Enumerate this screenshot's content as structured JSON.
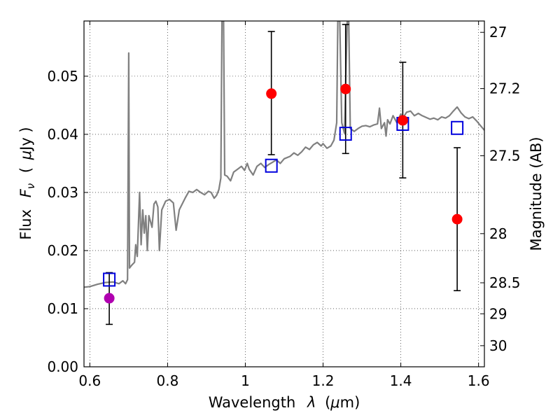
{
  "chart_data": {
    "type": "line",
    "xlabel": "Wavelength",
    "xlabel_symbol": "λ",
    "xlabel_unit_open": "(",
    "xlabel_unit_mu": "μ",
    "xlabel_unit_rest": "m)",
    "ylabel": "Flux",
    "ylabel_symbol": "F",
    "ylabel_symbol_sub": "ν",
    "ylabel_unit_open": "(",
    "ylabel_unit_mu": "μ",
    "ylabel_unit_rest": "Jy )",
    "y2label": "Magnitude (AB)",
    "xlim": [
      0.585,
      1.615
    ],
    "ylim": [
      0.0,
      0.0595
    ],
    "grid": true,
    "x_ticks": [
      {
        "value": 0.6,
        "label": "0.6"
      },
      {
        "value": 0.8,
        "label": "0.8"
      },
      {
        "value": 1.0,
        "label": "1"
      },
      {
        "value": 1.2,
        "label": "1.2"
      },
      {
        "value": 1.4,
        "label": "1.4"
      },
      {
        "value": 1.6,
        "label": "1.6"
      }
    ],
    "y_ticks": [
      {
        "value": 0.0,
        "label": "0.00"
      },
      {
        "value": 0.01,
        "label": "0.01"
      },
      {
        "value": 0.02,
        "label": "0.02"
      },
      {
        "value": 0.03,
        "label": "0.03"
      },
      {
        "value": 0.04,
        "label": "0.04"
      },
      {
        "value": 0.05,
        "label": "0.05"
      }
    ],
    "y2_ticks": [
      {
        "mag": 27.0,
        "label": "27"
      },
      {
        "mag": 27.2,
        "label": "27.2"
      },
      {
        "mag": 27.5,
        "label": "27.5"
      },
      {
        "mag": 28.0,
        "label": "28"
      },
      {
        "mag": 28.5,
        "label": "28.5"
      },
      {
        "mag": 29.0,
        "label": "29"
      },
      {
        "mag": 30.0,
        "label": "30"
      }
    ],
    "model_color": "#808080",
    "model_spectrum": [
      [
        0.585,
        0.0137
      ],
      [
        0.6,
        0.0138
      ],
      [
        0.62,
        0.0142
      ],
      [
        0.64,
        0.0145
      ],
      [
        0.66,
        0.0146
      ],
      [
        0.675,
        0.0143
      ],
      [
        0.685,
        0.0148
      ],
      [
        0.692,
        0.0143
      ],
      [
        0.697,
        0.015
      ],
      [
        0.7,
        0.054
      ],
      [
        0.702,
        0.017
      ],
      [
        0.708,
        0.0175
      ],
      [
        0.715,
        0.018
      ],
      [
        0.718,
        0.021
      ],
      [
        0.722,
        0.019
      ],
      [
        0.728,
        0.03
      ],
      [
        0.732,
        0.021
      ],
      [
        0.736,
        0.027
      ],
      [
        0.74,
        0.023
      ],
      [
        0.744,
        0.026
      ],
      [
        0.748,
        0.02
      ],
      [
        0.752,
        0.026
      ],
      [
        0.76,
        0.024
      ],
      [
        0.765,
        0.028
      ],
      [
        0.77,
        0.0285
      ],
      [
        0.775,
        0.0275
      ],
      [
        0.779,
        0.02
      ],
      [
        0.785,
        0.027
      ],
      [
        0.795,
        0.0285
      ],
      [
        0.805,
        0.0288
      ],
      [
        0.815,
        0.0282
      ],
      [
        0.822,
        0.0235
      ],
      [
        0.83,
        0.027
      ],
      [
        0.845,
        0.029
      ],
      [
        0.855,
        0.0302
      ],
      [
        0.865,
        0.03
      ],
      [
        0.875,
        0.0305
      ],
      [
        0.885,
        0.03
      ],
      [
        0.895,
        0.0296
      ],
      [
        0.905,
        0.0302
      ],
      [
        0.912,
        0.03
      ],
      [
        0.92,
        0.029
      ],
      [
        0.926,
        0.0295
      ],
      [
        0.932,
        0.0305
      ],
      [
        0.937,
        0.0325
      ],
      [
        0.94,
        0.0595
      ],
      [
        0.944,
        0.0595
      ],
      [
        0.947,
        0.033
      ],
      [
        0.953,
        0.0328
      ],
      [
        0.962,
        0.032
      ],
      [
        0.97,
        0.0335
      ],
      [
        0.98,
        0.034
      ],
      [
        0.99,
        0.0345
      ],
      [
        0.998,
        0.0338
      ],
      [
        1.005,
        0.035
      ],
      [
        1.01,
        0.034
      ],
      [
        1.02,
        0.033
      ],
      [
        1.03,
        0.0345
      ],
      [
        1.04,
        0.035
      ],
      [
        1.05,
        0.0343
      ],
      [
        1.06,
        0.0348
      ],
      [
        1.07,
        0.0352
      ],
      [
        1.08,
        0.0356
      ],
      [
        1.09,
        0.035
      ],
      [
        1.1,
        0.0358
      ],
      [
        1.115,
        0.0362
      ],
      [
        1.125,
        0.0368
      ],
      [
        1.135,
        0.0364
      ],
      [
        1.145,
        0.037
      ],
      [
        1.155,
        0.0378
      ],
      [
        1.165,
        0.0374
      ],
      [
        1.175,
        0.0382
      ],
      [
        1.185,
        0.0386
      ],
      [
        1.195,
        0.038
      ],
      [
        1.2,
        0.0384
      ],
      [
        1.21,
        0.0376
      ],
      [
        1.22,
        0.038
      ],
      [
        1.228,
        0.039
      ],
      [
        1.235,
        0.042
      ],
      [
        1.238,
        0.0595
      ],
      [
        1.243,
        0.0595
      ],
      [
        1.248,
        0.042
      ],
      [
        1.255,
        0.0402
      ],
      [
        1.262,
        0.0595
      ],
      [
        1.266,
        0.0595
      ],
      [
        1.27,
        0.041
      ],
      [
        1.28,
        0.0405
      ],
      [
        1.29,
        0.041
      ],
      [
        1.3,
        0.0414
      ],
      [
        1.31,
        0.0415
      ],
      [
        1.32,
        0.0413
      ],
      [
        1.33,
        0.0416
      ],
      [
        1.34,
        0.0418
      ],
      [
        1.345,
        0.0445
      ],
      [
        1.35,
        0.041
      ],
      [
        1.358,
        0.042
      ],
      [
        1.362,
        0.0397
      ],
      [
        1.366,
        0.0425
      ],
      [
        1.372,
        0.0418
      ],
      [
        1.38,
        0.0432
      ],
      [
        1.39,
        0.042
      ],
      [
        1.4,
        0.0435
      ],
      [
        1.405,
        0.0428
      ],
      [
        1.415,
        0.0438
      ],
      [
        1.425,
        0.044
      ],
      [
        1.435,
        0.0432
      ],
      [
        1.445,
        0.0436
      ],
      [
        1.455,
        0.0432
      ],
      [
        1.465,
        0.0429
      ],
      [
        1.475,
        0.0426
      ],
      [
        1.485,
        0.0428
      ],
      [
        1.495,
        0.0425
      ],
      [
        1.505,
        0.043
      ],
      [
        1.515,
        0.0428
      ],
      [
        1.525,
        0.0432
      ],
      [
        1.535,
        0.044
      ],
      [
        1.545,
        0.0447
      ],
      [
        1.555,
        0.0437
      ],
      [
        1.565,
        0.043
      ],
      [
        1.575,
        0.0427
      ],
      [
        1.585,
        0.043
      ],
      [
        1.595,
        0.0423
      ],
      [
        1.605,
        0.0415
      ],
      [
        1.615,
        0.0407
      ]
    ],
    "model_photometry": {
      "color": "#0000dd",
      "points": [
        {
          "x": 0.65,
          "y": 0.015
        },
        {
          "x": 1.067,
          "y": 0.0346
        },
        {
          "x": 1.258,
          "y": 0.0401
        },
        {
          "x": 1.405,
          "y": 0.0418
        },
        {
          "x": 1.545,
          "y": 0.0411
        }
      ]
    },
    "observed_photometry": {
      "points": [
        {
          "x": 0.65,
          "y": 0.0118,
          "ylow": 0.0073,
          "yhigh": 0.0162,
          "color": "#b000b0"
        },
        {
          "x": 1.067,
          "y": 0.047,
          "ylow": 0.0365,
          "yhigh": 0.0577,
          "color": "#ff0000"
        },
        {
          "x": 1.258,
          "y": 0.0478,
          "ylow": 0.0367,
          "yhigh": 0.0589,
          "color": "#ff0000"
        },
        {
          "x": 1.405,
          "y": 0.0424,
          "ylow": 0.0325,
          "yhigh": 0.0524,
          "color": "#ff0000"
        },
        {
          "x": 1.545,
          "y": 0.0254,
          "ylow": 0.0131,
          "yhigh": 0.0377,
          "color": "#ff0000"
        }
      ]
    }
  }
}
